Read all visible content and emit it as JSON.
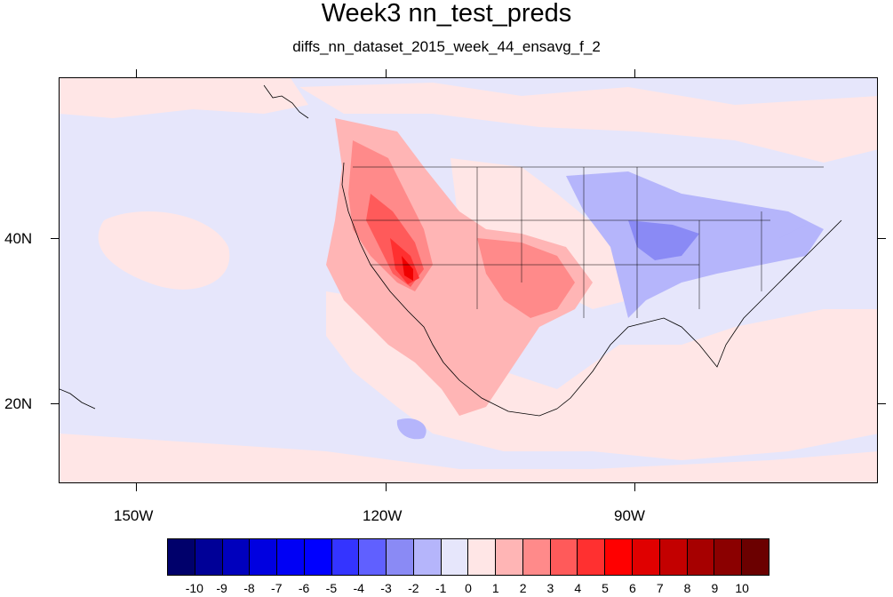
{
  "title": "Week3 nn_test_preds",
  "subtitle": "diffs_nn_dataset_2015_week_44_ensavg_f_2",
  "map": {
    "x_labels": [
      "150W",
      "120W",
      "90W"
    ],
    "y_labels": [
      "40N",
      "20N"
    ]
  },
  "colorbar": {
    "labels": [
      "-10",
      "-9",
      "-8",
      "-7",
      "-6",
      "-5",
      "-4",
      "-3",
      "-2",
      "-1",
      "0",
      "1",
      "2",
      "3",
      "4",
      "5",
      "6",
      "7",
      "8",
      "9",
      "10"
    ],
    "colors": [
      "#00006b",
      "#000097",
      "#0000bd",
      "#0000e0",
      "#0000f5",
      "#0000ff",
      "#3434ff",
      "#6060ff",
      "#8a8af5",
      "#b5b5fb",
      "#e6e6fb",
      "#ffe6e6",
      "#ffb5b5",
      "#ff8a8a",
      "#ff5a5a",
      "#ff3030",
      "#ff0000",
      "#e00000",
      "#c30000",
      "#a60000",
      "#8b0000",
      "#6b0000"
    ]
  }
}
